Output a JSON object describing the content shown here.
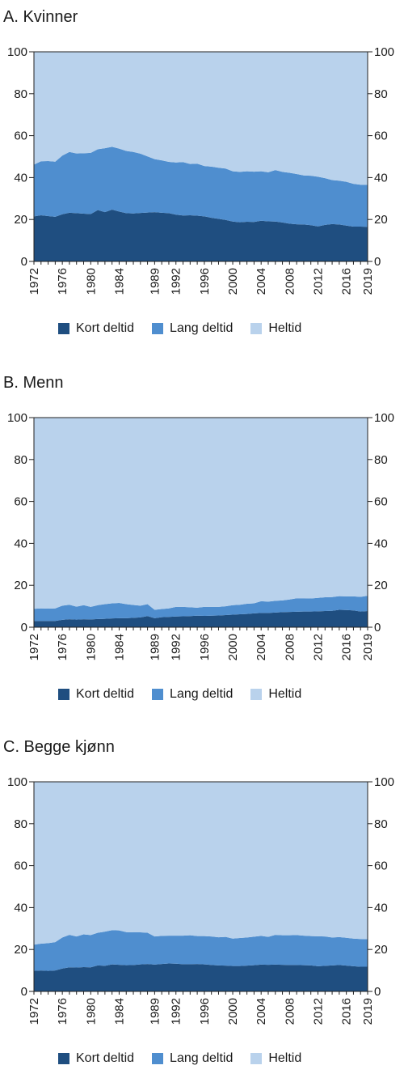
{
  "colors": {
    "kort": "#1f4e80",
    "lang": "#4f8ecf",
    "heltid": "#b9d2ec"
  },
  "chart_data": [
    {
      "type": "area",
      "stacked": true,
      "title": "A. Kvinner",
      "xlabel": "",
      "ylabel": "",
      "ylim": [
        0,
        100
      ],
      "yticks": [
        0,
        20,
        40,
        60,
        80,
        100
      ],
      "xlim": [
        1972,
        2019
      ],
      "xticks": [
        "1972",
        "1976",
        "1980",
        "1984",
        "1989",
        "1992",
        "1996",
        "2000",
        "2004",
        "2008",
        "2012",
        "2016",
        "2019"
      ],
      "grid": false,
      "legend": "bottom",
      "x": [
        1972,
        1973,
        1974,
        1975,
        1976,
        1977,
        1978,
        1979,
        1980,
        1981,
        1982,
        1983,
        1984,
        1985,
        1986,
        1987,
        1988,
        1989,
        1990,
        1991,
        1992,
        1993,
        1994,
        1995,
        1996,
        1997,
        1998,
        1999,
        2000,
        2001,
        2002,
        2003,
        2004,
        2005,
        2006,
        2007,
        2008,
        2009,
        2010,
        2011,
        2012,
        2013,
        2014,
        2015,
        2016,
        2017,
        2018,
        2019
      ],
      "series": [
        {
          "name": "Kort deltid",
          "values": [
            21.5,
            22.0,
            21.6,
            21.3,
            22.5,
            23.2,
            23.0,
            22.8,
            22.6,
            24.5,
            23.5,
            24.7,
            23.8,
            23.0,
            22.9,
            23.1,
            23.3,
            23.5,
            23.2,
            23.0,
            22.3,
            21.9,
            22.0,
            21.8,
            21.5,
            20.8,
            20.3,
            19.8,
            19.0,
            18.7,
            18.9,
            18.8,
            19.4,
            19.1,
            19.0,
            18.6,
            18.0,
            17.7,
            17.6,
            17.3,
            16.7,
            17.4,
            17.8,
            17.6,
            17.1,
            16.6,
            16.6,
            16.5
          ]
        },
        {
          "name": "Lang deltid",
          "values": [
            24.7,
            25.8,
            26.3,
            26.3,
            28.0,
            29.0,
            28.5,
            28.8,
            29.2,
            29.0,
            30.5,
            30.0,
            30.0,
            29.7,
            29.3,
            28.3,
            26.8,
            25.3,
            25.0,
            24.5,
            24.9,
            25.5,
            24.5,
            24.8,
            24.0,
            24.4,
            24.4,
            24.5,
            24.0,
            24.0,
            24.1,
            24.0,
            23.6,
            23.4,
            24.6,
            24.1,
            24.3,
            24.0,
            23.4,
            23.6,
            23.7,
            22.3,
            21.0,
            20.9,
            20.9,
            20.4,
            20.0,
            20.1
          ]
        },
        {
          "name": "Heltid",
          "values": [
            53.8,
            52.2,
            52.1,
            52.4,
            49.5,
            47.8,
            48.5,
            48.4,
            48.2,
            46.5,
            46.0,
            45.3,
            46.2,
            47.3,
            47.8,
            48.6,
            49.9,
            51.2,
            51.8,
            52.5,
            52.8,
            52.6,
            53.5,
            53.4,
            54.5,
            54.8,
            55.3,
            55.7,
            57.0,
            57.3,
            57.0,
            57.2,
            57.0,
            57.5,
            56.4,
            57.3,
            57.7,
            58.3,
            59.0,
            59.1,
            59.6,
            60.3,
            61.2,
            61.5,
            62.0,
            63.0,
            63.4,
            63.4
          ]
        }
      ]
    },
    {
      "type": "area",
      "stacked": true,
      "title": "B. Menn",
      "xlabel": "",
      "ylabel": "",
      "ylim": [
        0,
        100
      ],
      "yticks": [
        0,
        20,
        40,
        60,
        80,
        100
      ],
      "xlim": [
        1972,
        2019
      ],
      "xticks": [
        "1972",
        "1976",
        "1980",
        "1984",
        "1989",
        "1992",
        "1996",
        "2000",
        "2004",
        "2008",
        "2012",
        "2016",
        "2019"
      ],
      "grid": false,
      "legend": "bottom",
      "x": [
        1972,
        1973,
        1974,
        1975,
        1976,
        1977,
        1978,
        1979,
        1980,
        1981,
        1982,
        1983,
        1984,
        1985,
        1986,
        1987,
        1988,
        1989,
        1990,
        1991,
        1992,
        1993,
        1994,
        1995,
        1996,
        1997,
        1998,
        1999,
        2000,
        2001,
        2002,
        2003,
        2004,
        2005,
        2006,
        2007,
        2008,
        2009,
        2010,
        2011,
        2012,
        2013,
        2014,
        2015,
        2016,
        2017,
        2018,
        2019
      ],
      "series": [
        {
          "name": "Kort deltid",
          "values": [
            3.0,
            3.0,
            3.0,
            3.0,
            3.5,
            3.8,
            3.6,
            3.8,
            3.7,
            3.9,
            4.0,
            4.2,
            4.3,
            4.3,
            4.5,
            4.7,
            5.3,
            4.3,
            4.8,
            4.9,
            5.1,
            5.2,
            5.3,
            5.5,
            5.4,
            5.5,
            5.6,
            5.8,
            6.0,
            6.2,
            6.3,
            6.6,
            6.8,
            6.8,
            7.0,
            7.2,
            7.3,
            7.4,
            7.5,
            7.5,
            7.6,
            7.7,
            7.8,
            8.3,
            8.2,
            8.0,
            7.5,
            7.7
          ]
        },
        {
          "name": "Lang deltid",
          "values": [
            5.8,
            6.0,
            5.9,
            6.0,
            6.8,
            6.9,
            6.2,
            6.7,
            6.0,
            6.6,
            7.0,
            7.2,
            7.3,
            6.7,
            6.1,
            5.6,
            5.7,
            4.0,
            3.9,
            4.1,
            4.6,
            4.5,
            4.2,
            3.8,
            4.3,
            4.2,
            4.1,
            4.2,
            4.5,
            4.5,
            4.9,
            4.8,
            5.6,
            5.4,
            5.6,
            5.6,
            5.9,
            6.4,
            6.3,
            6.2,
            6.4,
            6.6,
            6.6,
            6.5,
            6.5,
            6.7,
            7.0,
            7.3
          ]
        },
        {
          "name": "Heltid",
          "values": [
            91.2,
            91.0,
            91.1,
            91.0,
            89.7,
            89.3,
            90.2,
            89.5,
            90.3,
            89.5,
            89.0,
            88.6,
            88.4,
            89.0,
            89.4,
            89.7,
            89.0,
            91.7,
            91.3,
            91.0,
            90.3,
            90.3,
            90.5,
            90.7,
            90.3,
            90.3,
            90.3,
            90.0,
            89.5,
            89.3,
            88.8,
            88.6,
            87.6,
            87.8,
            87.4,
            87.2,
            86.8,
            86.2,
            86.2,
            86.3,
            86.0,
            85.7,
            85.6,
            85.2,
            85.3,
            85.3,
            85.5,
            85.0
          ]
        }
      ]
    },
    {
      "type": "area",
      "stacked": true,
      "title": "C. Begge kjønn",
      "xlabel": "",
      "ylabel": "",
      "ylim": [
        0,
        100
      ],
      "yticks": [
        0,
        20,
        40,
        60,
        80,
        100
      ],
      "xlim": [
        1972,
        2019
      ],
      "xticks": [
        "1972",
        "1976",
        "1980",
        "1984",
        "1989",
        "1992",
        "1996",
        "2000",
        "2004",
        "2008",
        "2012",
        "2016",
        "2019"
      ],
      "grid": false,
      "legend": "bottom",
      "x": [
        1972,
        1973,
        1974,
        1975,
        1976,
        1977,
        1978,
        1979,
        1980,
        1981,
        1982,
        1983,
        1984,
        1985,
        1986,
        1987,
        1988,
        1989,
        1990,
        1991,
        1992,
        1993,
        1994,
        1995,
        1996,
        1997,
        1998,
        1999,
        2000,
        2001,
        2002,
        2003,
        2004,
        2005,
        2006,
        2007,
        2008,
        2009,
        2010,
        2011,
        2012,
        2013,
        2014,
        2015,
        2016,
        2017,
        2018,
        2019
      ],
      "series": [
        {
          "name": "Kort deltid",
          "values": [
            9.8,
            10.0,
            9.8,
            10.0,
            10.9,
            11.5,
            11.4,
            11.6,
            11.5,
            12.4,
            12.2,
            12.9,
            12.7,
            12.5,
            12.6,
            12.9,
            13.1,
            12.8,
            13.1,
            13.3,
            13.2,
            13.0,
            13.0,
            13.1,
            12.9,
            12.6,
            12.4,
            12.3,
            12.1,
            12.1,
            12.3,
            12.5,
            12.8,
            12.7,
            12.8,
            12.7,
            12.6,
            12.6,
            12.5,
            12.4,
            12.0,
            12.2,
            12.4,
            12.6,
            12.3,
            12.0,
            11.8,
            11.8
          ]
        },
        {
          "name": "Lang deltid",
          "values": [
            12.5,
            12.8,
            13.2,
            13.5,
            14.8,
            15.5,
            14.8,
            15.6,
            15.4,
            15.6,
            16.3,
            16.3,
            16.4,
            15.8,
            15.6,
            15.3,
            14.9,
            13.4,
            13.4,
            13.3,
            13.4,
            13.6,
            13.8,
            13.3,
            13.5,
            13.6,
            13.4,
            13.7,
            13.1,
            13.4,
            13.4,
            13.6,
            13.7,
            13.3,
            14.2,
            14.1,
            14.2,
            14.3,
            14.1,
            14.0,
            14.3,
            14.0,
            13.3,
            13.3,
            13.3,
            13.2,
            13.2,
            13.1
          ]
        },
        {
          "name": "Heltid",
          "values": [
            77.7,
            77.2,
            77.0,
            76.5,
            74.3,
            73.0,
            73.8,
            72.8,
            73.1,
            72.0,
            71.5,
            70.8,
            70.9,
            71.7,
            71.8,
            71.8,
            72.0,
            73.8,
            73.5,
            73.4,
            73.4,
            73.4,
            73.2,
            73.6,
            73.6,
            73.8,
            74.2,
            74.0,
            74.8,
            74.5,
            74.3,
            73.9,
            73.5,
            74.0,
            73.0,
            73.2,
            73.2,
            73.1,
            73.4,
            73.6,
            73.7,
            73.8,
            74.3,
            74.1,
            74.4,
            74.8,
            75.0,
            75.1
          ]
        }
      ]
    }
  ]
}
